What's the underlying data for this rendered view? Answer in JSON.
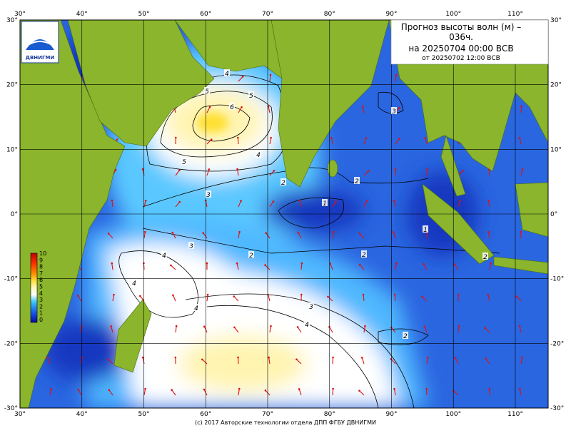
{
  "title": {
    "line1": "Прогноз высоты волн (м) –",
    "line2": "036ч.",
    "line3": "на 20250704 00:00 ВСВ",
    "line4": "от 20250702 12:00 ВСВ"
  },
  "logo": "ДВНИГМИ",
  "map": {
    "lon_ticks": [
      "30°",
      "40°",
      "50°",
      "60°",
      "70°",
      "80°",
      "90°",
      "100°",
      "110°"
    ],
    "lat_ticks": [
      "30°",
      "20°",
      "10°",
      "0°",
      "-10°",
      "-20°",
      "-30°"
    ]
  },
  "legend": {
    "labels": [
      "10",
      "9",
      "8",
      "7",
      "6",
      "5",
      "4",
      "3",
      "2",
      "1",
      "0"
    ]
  },
  "contour_labels": [
    "4",
    "5",
    "5",
    "6",
    "5",
    "4",
    "3",
    "2",
    "1",
    "2",
    "3",
    "3",
    "2",
    "1",
    "2",
    "2",
    "4",
    "4",
    "4",
    "3",
    "4",
    "2"
  ],
  "footer": "(c) 2017 Авторские технологии отдела ДПП ФГБУ ДВНИГМИ"
}
